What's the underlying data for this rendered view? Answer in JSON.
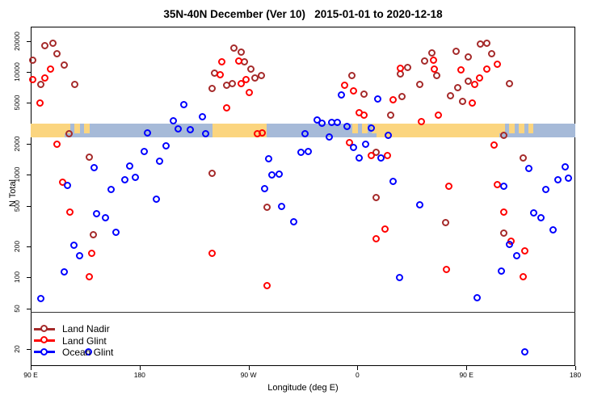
{
  "title": "35N-40N December (Ver 10)   2015-01-01 to 2020-12-18",
  "chart_data": {
    "type": "scatter",
    "title": "35N-40N December (Ver 10)   2015-01-01 to 2020-12-18",
    "xlabel": "Longitude (deg E)",
    "ylabel": "N Total",
    "x_axis": {
      "range_deg_e": [
        90,
        540
      ],
      "ticks": [
        {
          "lon": 90,
          "label": "90 E"
        },
        {
          "lon": 180,
          "label": "180"
        },
        {
          "lon": 270,
          "label": "90 W"
        },
        {
          "lon": 360,
          "label": "0"
        },
        {
          "lon": 450,
          "label": "90 E"
        },
        {
          "lon": 540,
          "label": "180"
        }
      ]
    },
    "y_axis": {
      "scale": "log",
      "range": [
        13.7,
        27700
      ],
      "ticks": [
        20,
        50,
        100,
        200,
        500,
        1000,
        2000,
        5000,
        10000,
        20000
      ]
    },
    "grid": "off",
    "hline_n": 46,
    "coast_band": {
      "comment": "horizontal land/ocean strip drawn across the plot",
      "n_range": [
        2300,
        3150
      ],
      "land_color": "#FBD57F",
      "ocean_color": "#A6BAD8",
      "segments": [
        {
          "from": 90,
          "to": 118,
          "type": "land"
        },
        {
          "from": 118,
          "to": 141,
          "type": "mixed"
        },
        {
          "from": 141,
          "to": 240,
          "type": "ocean"
        },
        {
          "from": 240,
          "to": 285,
          "type": "land"
        },
        {
          "from": 285,
          "to": 356,
          "type": "ocean"
        },
        {
          "from": 356,
          "to": 376,
          "type": "mixed"
        },
        {
          "from": 376,
          "to": 477,
          "type": "land"
        },
        {
          "from": 477,
          "to": 505,
          "type": "mixed"
        },
        {
          "from": 505,
          "to": 540,
          "type": "ocean"
        }
      ]
    },
    "legend": {
      "position": "bottom-left"
    },
    "series": [
      {
        "name": "Land Nadir",
        "color": "#A52A2A",
        "points": [
          [
            102,
            18000
          ],
          [
            109,
            19000
          ],
          [
            112,
            15000
          ],
          [
            92,
            13000
          ],
          [
            118,
            11500
          ],
          [
            99,
            7500
          ],
          [
            127,
            7500
          ],
          [
            122,
            2500
          ],
          [
            139,
            1470
          ],
          [
            240,
            6800
          ],
          [
            240,
            1030
          ],
          [
            142,
            260
          ],
          [
            258,
            17000
          ],
          [
            264,
            15500
          ],
          [
            267,
            12500
          ],
          [
            272,
            10600
          ],
          [
            242,
            9600
          ],
          [
            252,
            7400
          ],
          [
            257,
            7700
          ],
          [
            276,
            8700
          ],
          [
            281,
            9200
          ],
          [
            356,
            9100
          ],
          [
            366,
            6000
          ],
          [
            388,
            3800
          ],
          [
            376,
            1650
          ],
          [
            286,
            480
          ],
          [
            376,
            590
          ],
          [
            433,
            340
          ],
          [
            481,
            265
          ],
          [
            462,
            18600
          ],
          [
            467,
            19000
          ],
          [
            422,
            15300
          ],
          [
            442,
            15800
          ],
          [
            416,
            12700
          ],
          [
            452,
            13800
          ],
          [
            471,
            14800
          ],
          [
            396,
            9450
          ],
          [
            426,
            9100
          ],
          [
            412,
            7500
          ],
          [
            437,
            5800
          ],
          [
            443,
            7000
          ],
          [
            447,
            5100
          ],
          [
            452,
            8100
          ],
          [
            486,
            7700
          ],
          [
            481,
            2400
          ],
          [
            497,
            1430
          ],
          [
            402,
            10900
          ],
          [
            397,
            5700
          ]
        ]
      },
      {
        "name": "Land Glint",
        "color": "#FF0000",
        "points": [
          [
            107,
            10500
          ],
          [
            92,
            8400
          ],
          [
            102,
            8700
          ],
          [
            98,
            4900
          ],
          [
            112,
            1950
          ],
          [
            117,
            830
          ],
          [
            123,
            430
          ],
          [
            141,
            170
          ],
          [
            139,
            100
          ],
          [
            240,
            170
          ],
          [
            262,
            12800
          ],
          [
            248,
            12500
          ],
          [
            247,
            9400
          ],
          [
            264,
            7700
          ],
          [
            268,
            8300
          ],
          [
            271,
            6300
          ],
          [
            252,
            4400
          ],
          [
            278,
            2470
          ],
          [
            282,
            2520
          ],
          [
            350,
            7300
          ],
          [
            357,
            6500
          ],
          [
            362,
            4000
          ],
          [
            366,
            3750
          ],
          [
            354,
            2050
          ],
          [
            372,
            1530
          ],
          [
            385,
            1530
          ],
          [
            390,
            5300
          ],
          [
            383,
            290
          ],
          [
            376,
            235
          ],
          [
            286,
            82
          ],
          [
            396,
            10700
          ],
          [
            423,
            12900
          ],
          [
            424,
            10500
          ],
          [
            446,
            10300
          ],
          [
            455,
            4900
          ],
          [
            457,
            7500
          ],
          [
            461,
            8700
          ],
          [
            467,
            10500
          ],
          [
            476,
            11800
          ],
          [
            427,
            3750
          ],
          [
            413,
            3250
          ],
          [
            473,
            1930
          ],
          [
            436,
            770
          ],
          [
            476,
            790
          ],
          [
            481,
            430
          ],
          [
            487,
            222
          ],
          [
            499,
            178
          ],
          [
            434,
            118
          ],
          [
            497,
            100
          ]
        ]
      },
      {
        "name": "Ocean Glint",
        "color": "#0000FF",
        "points": [
          [
            143,
            1160
          ],
          [
            121,
            780
          ],
          [
            157,
            710
          ],
          [
            168,
            880
          ],
          [
            172,
            1200
          ],
          [
            177,
            930
          ],
          [
            184,
            1660
          ],
          [
            187,
            2520
          ],
          [
            197,
            1330
          ],
          [
            202,
            1880
          ],
          [
            208,
            3300
          ],
          [
            212,
            2760
          ],
          [
            217,
            4800
          ],
          [
            222,
            2700
          ],
          [
            232,
            3600
          ],
          [
            235,
            2500
          ],
          [
            194,
            570
          ],
          [
            145,
            410
          ],
          [
            152,
            375
          ],
          [
            161,
            270
          ],
          [
            126,
            205
          ],
          [
            131,
            160
          ],
          [
            118,
            112
          ],
          [
            99,
            62
          ],
          [
            138,
            18.5
          ],
          [
            347,
            5900
          ],
          [
            377,
            5400
          ],
          [
            327,
            3400
          ],
          [
            331,
            3150
          ],
          [
            339,
            3200
          ],
          [
            344,
            3200
          ],
          [
            352,
            2940
          ],
          [
            317,
            2500
          ],
          [
            337,
            2300
          ],
          [
            372,
            2830
          ],
          [
            386,
            2400
          ],
          [
            357,
            1830
          ],
          [
            367,
            1960
          ],
          [
            362,
            1440
          ],
          [
            380,
            1440
          ],
          [
            314,
            1640
          ],
          [
            320,
            1660
          ],
          [
            287,
            1410
          ],
          [
            290,
            980
          ],
          [
            296,
            1000
          ],
          [
            284,
            730
          ],
          [
            298,
            485
          ],
          [
            308,
            345
          ],
          [
            502,
            1130
          ],
          [
            532,
            1190
          ],
          [
            526,
            890
          ],
          [
            535,
            910
          ],
          [
            390,
            850
          ],
          [
            481,
            760
          ],
          [
            516,
            710
          ],
          [
            412,
            505
          ],
          [
            506,
            420
          ],
          [
            512,
            380
          ],
          [
            522,
            285
          ],
          [
            486,
            206
          ],
          [
            492,
            160
          ],
          [
            479,
            113
          ],
          [
            395,
            99
          ],
          [
            459,
            63
          ],
          [
            499,
            18.5
          ]
        ]
      }
    ]
  }
}
